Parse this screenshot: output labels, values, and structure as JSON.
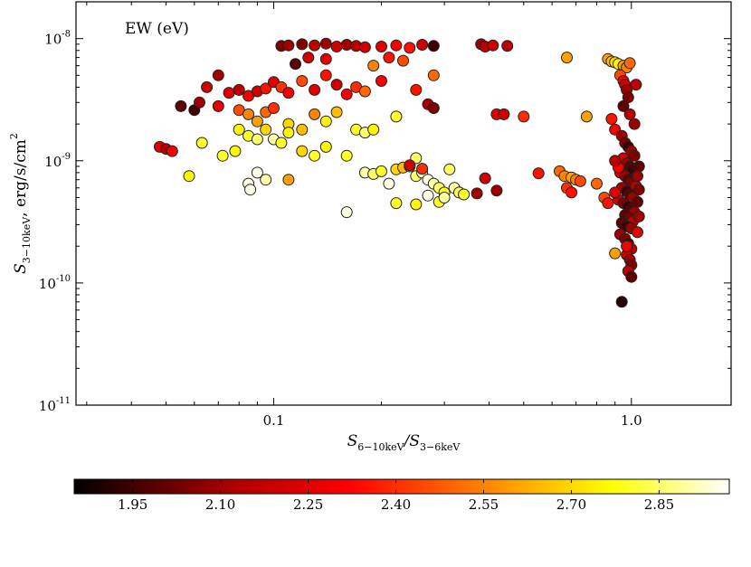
{
  "chart_data": {
    "type": "scatter",
    "title": "",
    "annotation": "EW (eV)",
    "xlabel": {
      "main": "S",
      "sub": "6−10keV",
      "sep": "/",
      "main2": "S",
      "sub2": "3−6keV"
    },
    "ylabel": {
      "main": "S",
      "sub": "3−10keV",
      "rest": ", erg/s/cm",
      "sup": "2"
    },
    "x_scale": "log",
    "y_scale": "log",
    "xlim": [
      0.028,
      1.9
    ],
    "ylim": [
      1e-11,
      2e-08
    ],
    "x_ticks": [
      {
        "value": 0.1,
        "label": "0.1"
      },
      {
        "value": 1.0,
        "label": "1.0"
      }
    ],
    "y_ticks": [
      {
        "value": 1e-08,
        "base": "10",
        "exp": "-8"
      },
      {
        "value": 1e-09,
        "base": "10",
        "exp": "-9"
      },
      {
        "value": 1e-10,
        "base": "10",
        "exp": "-10"
      },
      {
        "value": 1e-11,
        "base": "10",
        "exp": "-11"
      }
    ],
    "grid": false,
    "colorbar": {
      "range": [
        1.85,
        2.97
      ],
      "ticks": [
        "1.95",
        "2.10",
        "2.25",
        "2.40",
        "2.55",
        "2.70",
        "2.85"
      ],
      "tick_values": [
        1.95,
        2.1,
        2.25,
        2.4,
        2.55,
        2.7,
        2.85
      ],
      "colormap": "hot",
      "colors": [
        "#000000",
        "#b30000",
        "#ff0000",
        "#ff8000",
        "#ffff00",
        "#ffffff"
      ]
    },
    "points": [
      {
        "x": 0.105,
        "y": 8.7e-09,
        "c": 2.05
      },
      {
        "x": 0.11,
        "y": 8.8e-09,
        "c": 2.1
      },
      {
        "x": 0.12,
        "y": 9e-09,
        "c": 2.05
      },
      {
        "x": 0.13,
        "y": 8.8e-09,
        "c": 2.15
      },
      {
        "x": 0.14,
        "y": 9.1e-09,
        "c": 2.1
      },
      {
        "x": 0.15,
        "y": 8.6e-09,
        "c": 2.2
      },
      {
        "x": 0.16,
        "y": 8.9e-09,
        "c": 2.1
      },
      {
        "x": 0.17,
        "y": 8.7e-09,
        "c": 2.15
      },
      {
        "x": 0.18,
        "y": 8.5e-09,
        "c": 2.2
      },
      {
        "x": 0.2,
        "y": 8.6e-09,
        "c": 2.25
      },
      {
        "x": 0.22,
        "y": 8.8e-09,
        "c": 2.3
      },
      {
        "x": 0.24,
        "y": 8.4e-09,
        "c": 2.35
      },
      {
        "x": 0.26,
        "y": 8.9e-09,
        "c": 2.2
      },
      {
        "x": 0.28,
        "y": 8.7e-09,
        "c": 1.95
      },
      {
        "x": 0.115,
        "y": 6.2e-09,
        "c": 2.0
      },
      {
        "x": 0.125,
        "y": 7e-09,
        "c": 2.2
      },
      {
        "x": 0.14,
        "y": 6.8e-09,
        "c": 2.25
      },
      {
        "x": 0.21,
        "y": 7e-09,
        "c": 2.35
      },
      {
        "x": 0.23,
        "y": 6.6e-09,
        "c": 2.45
      },
      {
        "x": 0.19,
        "y": 6e-09,
        "c": 2.55
      },
      {
        "x": 0.38,
        "y": 9e-09,
        "c": 2.1
      },
      {
        "x": 0.39,
        "y": 8.6e-09,
        "c": 2.15
      },
      {
        "x": 0.41,
        "y": 8.8e-09,
        "c": 2.2
      },
      {
        "x": 0.45,
        "y": 8.7e-09,
        "c": 2.15
      },
      {
        "x": 0.07,
        "y": 5e-09,
        "c": 2.1
      },
      {
        "x": 0.065,
        "y": 4e-09,
        "c": 2.2
      },
      {
        "x": 0.075,
        "y": 3.6e-09,
        "c": 2.25
      },
      {
        "x": 0.08,
        "y": 3.8e-09,
        "c": 2.15
      },
      {
        "x": 0.085,
        "y": 3.4e-09,
        "c": 2.3
      },
      {
        "x": 0.09,
        "y": 3.7e-09,
        "c": 2.2
      },
      {
        "x": 0.095,
        "y": 3.9e-09,
        "c": 2.35
      },
      {
        "x": 0.1,
        "y": 4.4e-09,
        "c": 2.25
      },
      {
        "x": 0.105,
        "y": 4e-09,
        "c": 2.4
      },
      {
        "x": 0.11,
        "y": 3.6e-09,
        "c": 2.3
      },
      {
        "x": 0.12,
        "y": 4.5e-09,
        "c": 2.45
      },
      {
        "x": 0.13,
        "y": 3.8e-09,
        "c": 2.25
      },
      {
        "x": 0.14,
        "y": 5e-09,
        "c": 2.35
      },
      {
        "x": 0.15,
        "y": 4.2e-09,
        "c": 2.2
      },
      {
        "x": 0.16,
        "y": 3.5e-09,
        "c": 2.3
      },
      {
        "x": 0.17,
        "y": 4e-09,
        "c": 2.4
      },
      {
        "x": 0.18,
        "y": 3.7e-09,
        "c": 2.5
      },
      {
        "x": 0.2,
        "y": 4.5e-09,
        "c": 2.3
      },
      {
        "x": 0.25,
        "y": 3.8e-09,
        "c": 2.35
      },
      {
        "x": 0.28,
        "y": 5e-09,
        "c": 2.5
      },
      {
        "x": 0.055,
        "y": 2.8e-09,
        "c": 2.0
      },
      {
        "x": 0.06,
        "y": 2.6e-09,
        "c": 1.95
      },
      {
        "x": 0.062,
        "y": 3e-09,
        "c": 2.1
      },
      {
        "x": 0.07,
        "y": 2.8e-09,
        "c": 2.25
      },
      {
        "x": 0.08,
        "y": 2.6e-09,
        "c": 2.45
      },
      {
        "x": 0.085,
        "y": 2.4e-09,
        "c": 2.55
      },
      {
        "x": 0.09,
        "y": 2.1e-09,
        "c": 2.6
      },
      {
        "x": 0.095,
        "y": 2.5e-09,
        "c": 2.5
      },
      {
        "x": 0.1,
        "y": 2.7e-09,
        "c": 2.4
      },
      {
        "x": 0.11,
        "y": 2e-09,
        "c": 2.7
      },
      {
        "x": 0.12,
        "y": 1.8e-09,
        "c": 2.65
      },
      {
        "x": 0.13,
        "y": 2.4e-09,
        "c": 2.55
      },
      {
        "x": 0.14,
        "y": 2.1e-09,
        "c": 2.75
      },
      {
        "x": 0.15,
        "y": 2.5e-09,
        "c": 2.65
      },
      {
        "x": 0.27,
        "y": 2.9e-09,
        "c": 2.1
      },
      {
        "x": 0.28,
        "y": 2.7e-09,
        "c": 2.05
      },
      {
        "x": 0.42,
        "y": 2.4e-09,
        "c": 2.25
      },
      {
        "x": 0.44,
        "y": 2.4e-09,
        "c": 2.2
      },
      {
        "x": 0.5,
        "y": 2.3e-09,
        "c": 2.4
      },
      {
        "x": 0.75,
        "y": 2.3e-09,
        "c": 2.6
      },
      {
        "x": 0.08,
        "y": 1.8e-09,
        "c": 2.75
      },
      {
        "x": 0.085,
        "y": 1.6e-09,
        "c": 2.8
      },
      {
        "x": 0.09,
        "y": 1.5e-09,
        "c": 2.85
      },
      {
        "x": 0.095,
        "y": 1.8e-09,
        "c": 2.7
      },
      {
        "x": 0.1,
        "y": 1.5e-09,
        "c": 2.9
      },
      {
        "x": 0.105,
        "y": 1.4e-09,
        "c": 2.8
      },
      {
        "x": 0.11,
        "y": 1.7e-09,
        "c": 2.75
      },
      {
        "x": 0.12,
        "y": 1.2e-09,
        "c": 2.7
      },
      {
        "x": 0.13,
        "y": 1.1e-09,
        "c": 2.8
      },
      {
        "x": 0.14,
        "y": 1.3e-09,
        "c": 2.75
      },
      {
        "x": 0.17,
        "y": 1.8e-09,
        "c": 2.8
      },
      {
        "x": 0.18,
        "y": 1.7e-09,
        "c": 2.85
      },
      {
        "x": 0.19,
        "y": 1.8e-09,
        "c": 2.75
      },
      {
        "x": 0.22,
        "y": 2.3e-09,
        "c": 2.8
      },
      {
        "x": 0.048,
        "y": 1.3e-09,
        "c": 2.25
      },
      {
        "x": 0.05,
        "y": 1.25e-09,
        "c": 2.15
      },
      {
        "x": 0.052,
        "y": 1.2e-09,
        "c": 2.3
      },
      {
        "x": 0.063,
        "y": 1.4e-09,
        "c": 2.8
      },
      {
        "x": 0.072,
        "y": 1.1e-09,
        "c": 2.8
      },
      {
        "x": 0.078,
        "y": 1.2e-09,
        "c": 2.75
      },
      {
        "x": 0.058,
        "y": 7.5e-10,
        "c": 2.75
      },
      {
        "x": 0.085,
        "y": 6.5e-10,
        "c": 2.95
      },
      {
        "x": 0.09,
        "y": 8e-10,
        "c": 2.95
      },
      {
        "x": 0.095,
        "y": 7e-10,
        "c": 2.9
      },
      {
        "x": 0.086,
        "y": 5.8e-10,
        "c": 2.95
      },
      {
        "x": 0.11,
        "y": 7e-10,
        "c": 2.6
      },
      {
        "x": 0.16,
        "y": 1.1e-09,
        "c": 2.8
      },
      {
        "x": 0.16,
        "y": 3.8e-10,
        "c": 2.95
      },
      {
        "x": 0.18,
        "y": 8e-10,
        "c": 2.9
      },
      {
        "x": 0.19,
        "y": 7.8e-10,
        "c": 2.85
      },
      {
        "x": 0.2,
        "y": 8.2e-10,
        "c": 2.8
      },
      {
        "x": 0.21,
        "y": 6.5e-10,
        "c": 2.95
      },
      {
        "x": 0.22,
        "y": 8.5e-10,
        "c": 2.7
      },
      {
        "x": 0.23,
        "y": 8.8e-10,
        "c": 2.65
      },
      {
        "x": 0.24,
        "y": 9e-10,
        "c": 2.75
      },
      {
        "x": 0.25,
        "y": 7.5e-10,
        "c": 2.85
      },
      {
        "x": 0.26,
        "y": 8e-10,
        "c": 2.9
      },
      {
        "x": 0.27,
        "y": 7e-10,
        "c": 2.95
      },
      {
        "x": 0.28,
        "y": 6.5e-10,
        "c": 2.9
      },
      {
        "x": 0.29,
        "y": 6e-10,
        "c": 2.85
      },
      {
        "x": 0.3,
        "y": 5.5e-10,
        "c": 2.8
      },
      {
        "x": 0.31,
        "y": 8.5e-10,
        "c": 2.85
      },
      {
        "x": 0.32,
        "y": 6e-10,
        "c": 2.9
      },
      {
        "x": 0.33,
        "y": 5.5e-10,
        "c": 2.85
      },
      {
        "x": 0.34,
        "y": 5.3e-10,
        "c": 2.8
      },
      {
        "x": 0.25,
        "y": 1.05e-09,
        "c": 2.85
      },
      {
        "x": 0.22,
        "y": 4.5e-10,
        "c": 2.8
      },
      {
        "x": 0.25,
        "y": 4.4e-10,
        "c": 2.75
      },
      {
        "x": 0.29,
        "y": 4.6e-10,
        "c": 2.8
      },
      {
        "x": 0.3,
        "y": 5e-10,
        "c": 2.9
      },
      {
        "x": 0.27,
        "y": 5.2e-10,
        "c": 2.95
      },
      {
        "x": 0.37,
        "y": 5.4e-10,
        "c": 2.1
      },
      {
        "x": 0.39,
        "y": 7.2e-10,
        "c": 2.2
      },
      {
        "x": 0.42,
        "y": 5.7e-10,
        "c": 2.1
      },
      {
        "x": 0.24,
        "y": 9.2e-10,
        "c": 2.2
      },
      {
        "x": 0.26,
        "y": 8.6e-10,
        "c": 2.4
      },
      {
        "x": 0.55,
        "y": 7.9e-10,
        "c": 2.35
      },
      {
        "x": 0.63,
        "y": 8.2e-10,
        "c": 2.5
      },
      {
        "x": 0.65,
        "y": 7.5e-10,
        "c": 2.55
      },
      {
        "x": 0.66,
        "y": 6e-10,
        "c": 2.4
      },
      {
        "x": 0.68,
        "y": 7.3e-10,
        "c": 2.6
      },
      {
        "x": 0.7,
        "y": 7e-10,
        "c": 2.55
      },
      {
        "x": 0.72,
        "y": 6.8e-10,
        "c": 2.45
      },
      {
        "x": 0.68,
        "y": 5.5e-10,
        "c": 2.35
      },
      {
        "x": 0.66,
        "y": 7e-09,
        "c": 2.6
      },
      {
        "x": 0.86,
        "y": 6.8e-09,
        "c": 2.6
      },
      {
        "x": 0.88,
        "y": 6.5e-09,
        "c": 2.65
      },
      {
        "x": 0.9,
        "y": 6.4e-09,
        "c": 2.7
      },
      {
        "x": 0.92,
        "y": 6.2e-09,
        "c": 2.75
      },
      {
        "x": 0.95,
        "y": 6e-09,
        "c": 2.6
      },
      {
        "x": 0.97,
        "y": 5.8e-09,
        "c": 2.55
      },
      {
        "x": 0.99,
        "y": 6.3e-09,
        "c": 2.5
      },
      {
        "x": 0.93,
        "y": 5e-09,
        "c": 2.45
      },
      {
        "x": 0.95,
        "y": 4.5e-09,
        "c": 2.3
      },
      {
        "x": 0.96,
        "y": 4.2e-09,
        "c": 2.2
      },
      {
        "x": 0.97,
        "y": 3.8e-09,
        "c": 2.1
      },
      {
        "x": 0.98,
        "y": 3.3e-09,
        "c": 2.05
      },
      {
        "x": 0.95,
        "y": 2.8e-09,
        "c": 2.0
      },
      {
        "x": 0.99,
        "y": 2.4e-09,
        "c": 2.15
      },
      {
        "x": 1.02,
        "y": 2e-09,
        "c": 2.1
      },
      {
        "x": 0.88,
        "y": 2.2e-09,
        "c": 2.35
      },
      {
        "x": 0.9,
        "y": 1.8e-09,
        "c": 2.3
      },
      {
        "x": 0.94,
        "y": 1.6e-09,
        "c": 2.1
      },
      {
        "x": 0.96,
        "y": 1.4e-09,
        "c": 2.05
      },
      {
        "x": 0.98,
        "y": 1.3e-09,
        "c": 1.95
      },
      {
        "x": 1.0,
        "y": 1.2e-09,
        "c": 2.1
      },
      {
        "x": 1.02,
        "y": 1.1e-09,
        "c": 2.05
      },
      {
        "x": 0.95,
        "y": 1.05e-09,
        "c": 2.2
      },
      {
        "x": 0.97,
        "y": 9.5e-10,
        "c": 2.1
      },
      {
        "x": 0.99,
        "y": 9e-10,
        "c": 2.0
      },
      {
        "x": 1.01,
        "y": 8.5e-10,
        "c": 1.95
      },
      {
        "x": 0.93,
        "y": 8e-10,
        "c": 2.25
      },
      {
        "x": 0.96,
        "y": 7.5e-10,
        "c": 2.1
      },
      {
        "x": 0.98,
        "y": 7e-10,
        "c": 2.0
      },
      {
        "x": 1.0,
        "y": 6.6e-10,
        "c": 2.05
      },
      {
        "x": 1.03,
        "y": 6.2e-10,
        "c": 2.15
      },
      {
        "x": 0.94,
        "y": 6e-10,
        "c": 2.1
      },
      {
        "x": 0.97,
        "y": 5.6e-10,
        "c": 1.95
      },
      {
        "x": 0.99,
        "y": 5.3e-10,
        "c": 2.0
      },
      {
        "x": 1.01,
        "y": 5e-10,
        "c": 2.1
      },
      {
        "x": 0.92,
        "y": 4.8e-10,
        "c": 2.2
      },
      {
        "x": 0.95,
        "y": 4.5e-10,
        "c": 2.05
      },
      {
        "x": 0.98,
        "y": 4.2e-10,
        "c": 1.95
      },
      {
        "x": 1.0,
        "y": 4e-10,
        "c": 2.0
      },
      {
        "x": 1.02,
        "y": 3.8e-10,
        "c": 2.1
      },
      {
        "x": 0.96,
        "y": 3.6e-10,
        "c": 2.0
      },
      {
        "x": 0.99,
        "y": 3.4e-10,
        "c": 2.05
      },
      {
        "x": 1.01,
        "y": 3.2e-10,
        "c": 2.15
      },
      {
        "x": 0.94,
        "y": 3.1e-10,
        "c": 2.0
      },
      {
        "x": 0.97,
        "y": 2.9e-10,
        "c": 1.95
      },
      {
        "x": 1.0,
        "y": 2.8e-10,
        "c": 2.1
      },
      {
        "x": 1.04,
        "y": 2.6e-10,
        "c": 2.25
      },
      {
        "x": 0.93,
        "y": 2.5e-10,
        "c": 2.1
      },
      {
        "x": 0.96,
        "y": 2.3e-10,
        "c": 2.05
      },
      {
        "x": 0.98,
        "y": 2.1e-10,
        "c": 2.0
      },
      {
        "x": 1.0,
        "y": 1.9e-10,
        "c": 2.15
      },
      {
        "x": 0.97,
        "y": 1.7e-10,
        "c": 2.2
      },
      {
        "x": 0.99,
        "y": 1.55e-10,
        "c": 2.1
      },
      {
        "x": 1.0,
        "y": 1.4e-10,
        "c": 2.05
      },
      {
        "x": 0.98,
        "y": 1.25e-10,
        "c": 2.15
      },
      {
        "x": 1.0,
        "y": 1.12e-10,
        "c": 2.0
      },
      {
        "x": 0.9,
        "y": 1.75e-10,
        "c": 2.6
      },
      {
        "x": 0.94,
        "y": 7e-11,
        "c": 1.9
      },
      {
        "x": 0.8,
        "y": 6.5e-10,
        "c": 2.5
      },
      {
        "x": 0.84,
        "y": 5e-10,
        "c": 2.45
      },
      {
        "x": 0.86,
        "y": 4.5e-10,
        "c": 2.35
      },
      {
        "x": 0.9,
        "y": 5.5e-10,
        "c": 2.25
      },
      {
        "x": 0.92,
        "y": 8.8e-10,
        "c": 2.3
      },
      {
        "x": 0.9,
        "y": 1e-09,
        "c": 2.15
      },
      {
        "x": 1.05,
        "y": 9e-10,
        "c": 2.0
      },
      {
        "x": 1.04,
        "y": 7.5e-10,
        "c": 2.1
      },
      {
        "x": 1.05,
        "y": 5.8e-10,
        "c": 2.05
      },
      {
        "x": 1.04,
        "y": 4.6e-10,
        "c": 2.0
      },
      {
        "x": 1.05,
        "y": 3.5e-10,
        "c": 2.1
      },
      {
        "x": 1.03,
        "y": 4.2e-09,
        "c": 2.15
      },
      {
        "x": 0.97,
        "y": 2e-10,
        "c": 2.3
      }
    ]
  }
}
